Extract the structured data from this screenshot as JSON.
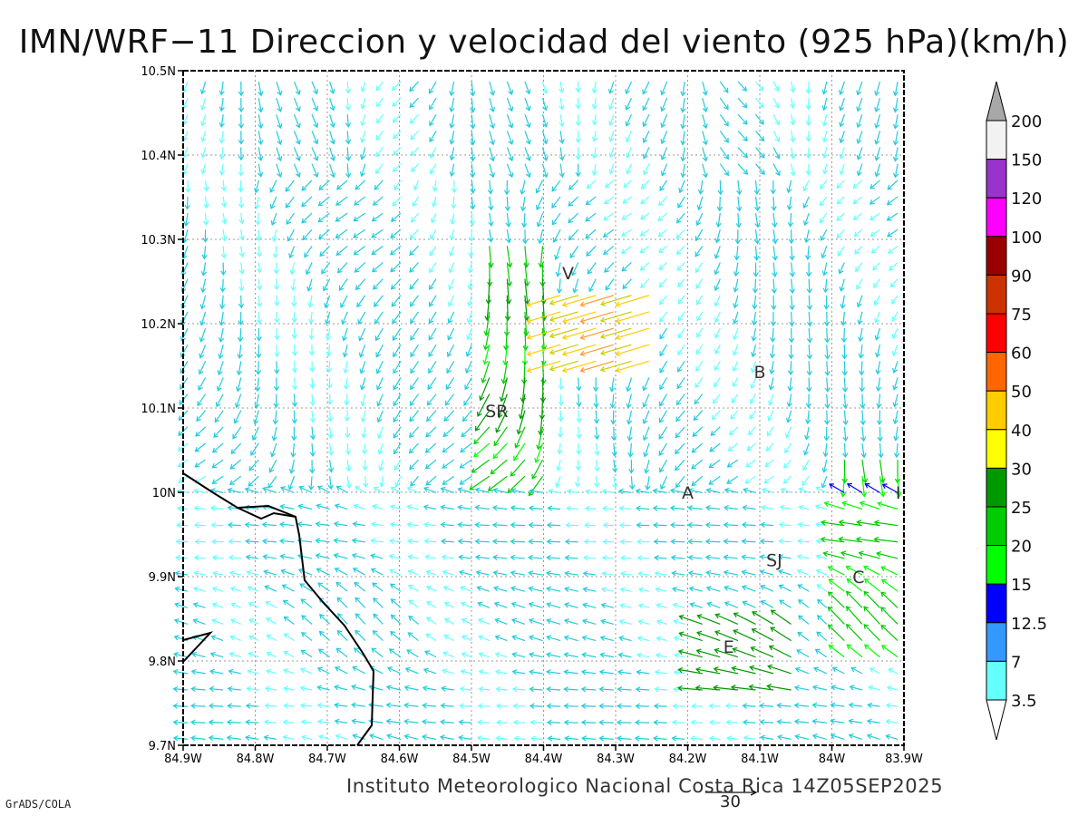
{
  "title": "IMN/WRF−11 Direccion y velocidad del viento (925 hPa)(km/h)",
  "credit": "Instituto Meteorologico Nacional Costa Rica 14Z05SEP2025",
  "software": "GrADS/COLA",
  "reference_vector": {
    "label": "30"
  },
  "axes": {
    "x_ticks": [
      "84.9W",
      "84.8W",
      "84.7W",
      "84.6W",
      "84.5W",
      "84.4W",
      "84.3W",
      "84.2W",
      "84.1W",
      "84W",
      "83.9W"
    ],
    "y_ticks": [
      "10.5N",
      "10.4N",
      "10.3N",
      "10.2N",
      "10.1N",
      "10N",
      "9.9N",
      "9.8N",
      "9.7N"
    ],
    "lon_range": [
      -84.9,
      -83.9
    ],
    "lat_range": [
      9.7,
      10.5
    ],
    "grid": true
  },
  "places": [
    {
      "label": "V",
      "lon": -84.366,
      "lat": 10.26
    },
    {
      "label": "SR",
      "lon": -84.465,
      "lat": 10.097
    },
    {
      "label": "B",
      "lon": -84.1,
      "lat": 10.143
    },
    {
      "label": "A",
      "lon": -84.2,
      "lat": 10.0
    },
    {
      "label": "I",
      "lon": -83.908,
      "lat": 10.0
    },
    {
      "label": "SJ",
      "lon": -84.08,
      "lat": 9.92
    },
    {
      "label": "C",
      "lon": -83.963,
      "lat": 9.9
    },
    {
      "label": "E",
      "lon": -84.143,
      "lat": 9.817
    }
  ],
  "legend": {
    "labels": [
      "200",
      "150",
      "120",
      "100",
      "90",
      "75",
      "60",
      "50",
      "40",
      "30",
      "25",
      "20",
      "15",
      "12.5",
      "7",
      "3.5"
    ],
    "colors": [
      "#a8a8a8",
      "#f2f2f2",
      "#9933cc",
      "#ff00ff",
      "#990000",
      "#cc3300",
      "#ff0000",
      "#ff6600",
      "#ffcc00",
      "#ffff00",
      "#009900",
      "#00cc00",
      "#00ff00",
      "#0000ff",
      "#3399ff",
      "#66ffff"
    ]
  }
}
